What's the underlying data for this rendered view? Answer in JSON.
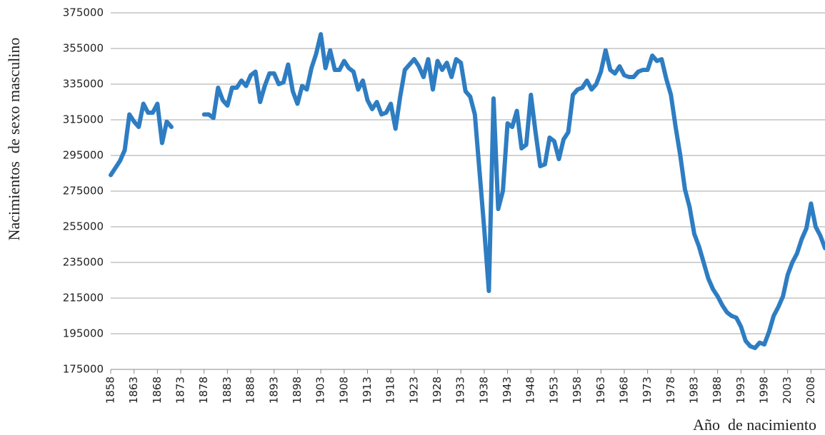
{
  "chart_data": {
    "type": "line",
    "y_label": "Nacimientos  de sexo masculino",
    "x_label": "Año  de nacimiento",
    "x": [
      1858,
      1859,
      1860,
      1861,
      1862,
      1863,
      1864,
      1865,
      1866,
      1867,
      1868,
      1869,
      1870,
      1871,
      1872,
      1873,
      1874,
      1875,
      1876,
      1877,
      1878,
      1879,
      1880,
      1881,
      1882,
      1883,
      1884,
      1885,
      1886,
      1887,
      1888,
      1889,
      1890,
      1891,
      1892,
      1893,
      1894,
      1895,
      1896,
      1897,
      1898,
      1899,
      1900,
      1901,
      1902,
      1903,
      1904,
      1905,
      1906,
      1907,
      1908,
      1909,
      1910,
      1911,
      1912,
      1913,
      1914,
      1915,
      1916,
      1917,
      1918,
      1919,
      1920,
      1921,
      1922,
      1923,
      1924,
      1925,
      1926,
      1927,
      1928,
      1929,
      1930,
      1931,
      1932,
      1933,
      1934,
      1935,
      1936,
      1937,
      1938,
      1939,
      1940,
      1941,
      1942,
      1943,
      1944,
      1945,
      1946,
      1947,
      1948,
      1949,
      1950,
      1951,
      1952,
      1953,
      1954,
      1955,
      1956,
      1957,
      1958,
      1959,
      1960,
      1961,
      1962,
      1963,
      1964,
      1965,
      1966,
      1967,
      1968,
      1969,
      1970,
      1971,
      1972,
      1973,
      1974,
      1975,
      1976,
      1977,
      1978,
      1979,
      1980,
      1981,
      1982,
      1983,
      1984,
      1985,
      1986,
      1987,
      1988,
      1989,
      1990,
      1991,
      1992,
      1993,
      1994,
      1995,
      1996,
      1997,
      1998,
      1999,
      2000,
      2001,
      2002,
      2003,
      2004,
      2005,
      2006,
      2007,
      2008,
      2009,
      2010,
      2011
    ],
    "values": [
      284000,
      288000,
      292000,
      298000,
      318000,
      314000,
      311000,
      324000,
      319000,
      319000,
      324000,
      302000,
      314000,
      311000,
      null,
      null,
      null,
      null,
      null,
      null,
      318000,
      318000,
      316000,
      333000,
      326000,
      323000,
      333000,
      333000,
      337000,
      334000,
      340000,
      342000,
      325000,
      334000,
      341000,
      341000,
      335000,
      336000,
      346000,
      331000,
      324000,
      334000,
      332000,
      344000,
      352000,
      363000,
      344000,
      354000,
      343000,
      343000,
      348000,
      344000,
      342000,
      332000,
      337000,
      326000,
      321000,
      325000,
      318000,
      319000,
      324000,
      310000,
      328000,
      343000,
      346000,
      349000,
      345000,
      339000,
      349000,
      332000,
      348000,
      343000,
      347000,
      339000,
      349000,
      347000,
      331000,
      328000,
      318000,
      286000,
      254000,
      219000,
      327000,
      265000,
      275000,
      313000,
      311000,
      320000,
      299000,
      301000,
      329000,
      308000,
      289000,
      290000,
      305000,
      303000,
      293000,
      304000,
      308000,
      329000,
      332000,
      333000,
      337000,
      332000,
      335000,
      342000,
      354000,
      343000,
      341000,
      345000,
      340000,
      339000,
      339000,
      342000,
      343000,
      343000,
      351000,
      348000,
      349000,
      338000,
      329000,
      311000,
      295000,
      276000,
      266000,
      251000,
      244000,
      235000,
      226000,
      220000,
      216000,
      211000,
      207000,
      205000,
      204000,
      199000,
      191000,
      188000,
      187000,
      190000,
      189000,
      196000,
      205000,
      210000,
      216000,
      228000,
      235000,
      240000,
      248000,
      254000,
      268000,
      255000,
      250000,
      243000
    ],
    "color": "#2e7dc2",
    "xlim": [
      1858,
      2011
    ],
    "ylim": [
      175000,
      375000
    ],
    "xticks": [
      1858,
      1863,
      1868,
      1873,
      1878,
      1883,
      1888,
      1893,
      1898,
      1903,
      1908,
      1913,
      1918,
      1923,
      1928,
      1933,
      1938,
      1943,
      1948,
      1953,
      1958,
      1963,
      1968,
      1973,
      1978,
      1983,
      1988,
      1993,
      1998,
      2003,
      2008
    ],
    "yticks": [
      175000,
      195000,
      215000,
      235000,
      255000,
      275000,
      295000,
      315000,
      335000,
      355000,
      375000
    ],
    "grid": true
  }
}
